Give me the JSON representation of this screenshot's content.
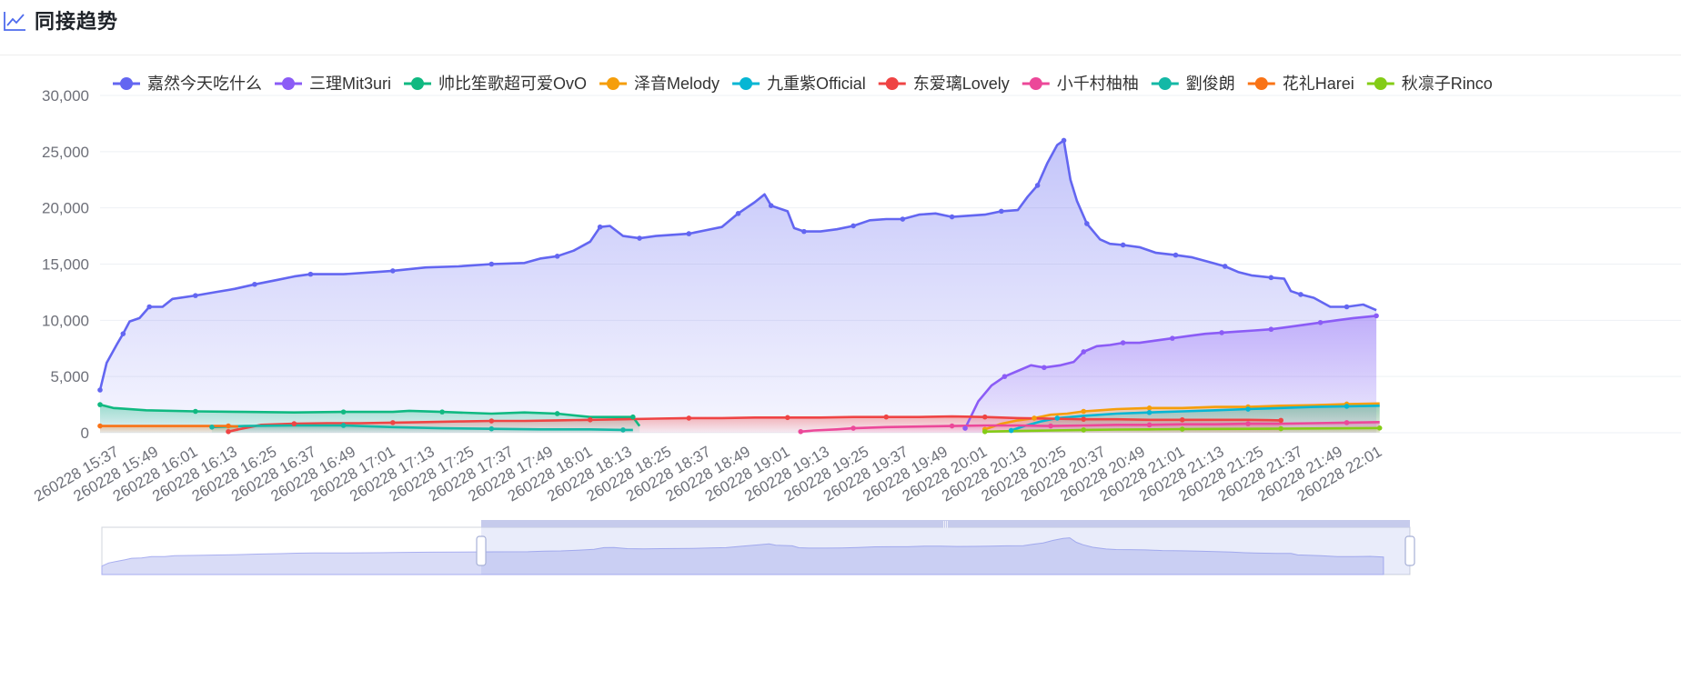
{
  "header": {
    "title": "同接趋势",
    "icon": "line-chart-icon"
  },
  "chart_data": {
    "type": "area",
    "ylim": [
      0,
      30000
    ],
    "yticks": [
      0,
      5000,
      10000,
      15000,
      20000,
      25000,
      30000
    ],
    "ytick_labels": [
      "0",
      "5,000",
      "10,000",
      "15,000",
      "20,000",
      "25,000",
      "30,000"
    ],
    "xrange": [
      "260228 15:31",
      "260228 22:07"
    ],
    "x_tick_labels": [
      "260228 15:37",
      "260228 15:49",
      "260228 16:01",
      "260228 16:13",
      "260228 16:25",
      "260228 16:37",
      "260228 16:49",
      "260228 17:01",
      "260228 17:13",
      "260228 17:25",
      "260228 17:37",
      "260228 17:49",
      "260228 18:01",
      "260228 18:13",
      "260228 18:25",
      "260228 18:37",
      "260228 18:49",
      "260228 19:01",
      "260228 19:13",
      "260228 19:25",
      "260228 19:37",
      "260228 19:49",
      "260228 20:01",
      "260228 20:13",
      "260228 20:25",
      "260228 20:37",
      "260228 20:49",
      "260228 21:01",
      "260228 21:13",
      "260228 21:25",
      "260228 21:37",
      "260228 21:49",
      "260228 22:01"
    ],
    "legend_position": "top",
    "grid": true,
    "series": [
      {
        "name": "嘉然今天吃什么",
        "color": "#6366f1",
        "points": [
          [
            "15:31",
            3800
          ],
          [
            "15:33",
            6200
          ],
          [
            "15:36",
            7800
          ],
          [
            "15:38",
            8800
          ],
          [
            "15:40",
            9900
          ],
          [
            "15:43",
            10200
          ],
          [
            "15:46",
            11200
          ],
          [
            "15:50",
            11200
          ],
          [
            "15:53",
            11900
          ],
          [
            "16:00",
            12200
          ],
          [
            "16:06",
            12500
          ],
          [
            "16:12",
            12800
          ],
          [
            "16:18",
            13200
          ],
          [
            "16:25",
            13600
          ],
          [
            "16:30",
            13900
          ],
          [
            "16:35",
            14100
          ],
          [
            "16:45",
            14100
          ],
          [
            "16:55",
            14300
          ],
          [
            "17:00",
            14400
          ],
          [
            "17:10",
            14700
          ],
          [
            "17:20",
            14800
          ],
          [
            "17:30",
            15000
          ],
          [
            "17:40",
            15100
          ],
          [
            "17:45",
            15500
          ],
          [
            "17:50",
            15700
          ],
          [
            "17:55",
            16200
          ],
          [
            "18:00",
            17000
          ],
          [
            "18:03",
            18300
          ],
          [
            "18:06",
            18400
          ],
          [
            "18:10",
            17500
          ],
          [
            "18:15",
            17300
          ],
          [
            "18:20",
            17500
          ],
          [
            "18:25",
            17600
          ],
          [
            "18:30",
            17700
          ],
          [
            "18:35",
            18000
          ],
          [
            "18:40",
            18300
          ],
          [
            "18:45",
            19500
          ],
          [
            "18:50",
            20500
          ],
          [
            "18:53",
            21200
          ],
          [
            "18:55",
            20200
          ],
          [
            "19:00",
            19700
          ],
          [
            "19:02",
            18200
          ],
          [
            "19:05",
            17900
          ],
          [
            "19:10",
            17900
          ],
          [
            "19:15",
            18100
          ],
          [
            "19:20",
            18400
          ],
          [
            "19:25",
            18900
          ],
          [
            "19:30",
            19000
          ],
          [
            "19:35",
            19000
          ],
          [
            "19:40",
            19400
          ],
          [
            "19:45",
            19500
          ],
          [
            "19:50",
            19200
          ],
          [
            "19:55",
            19300
          ],
          [
            "20:00",
            19400
          ],
          [
            "20:05",
            19700
          ],
          [
            "20:10",
            19800
          ],
          [
            "20:13",
            21000
          ],
          [
            "20:16",
            22000
          ],
          [
            "20:19",
            24000
          ],
          [
            "20:22",
            25600
          ],
          [
            "20:24",
            26000
          ],
          [
            "20:26",
            22500
          ],
          [
            "20:28",
            20600
          ],
          [
            "20:31",
            18600
          ],
          [
            "20:35",
            17200
          ],
          [
            "20:38",
            16800
          ],
          [
            "20:42",
            16700
          ],
          [
            "20:47",
            16500
          ],
          [
            "20:52",
            16000
          ],
          [
            "20:58",
            15800
          ],
          [
            "21:03",
            15600
          ],
          [
            "21:08",
            15200
          ],
          [
            "21:13",
            14800
          ],
          [
            "21:17",
            14300
          ],
          [
            "21:21",
            14000
          ],
          [
            "21:27",
            13800
          ],
          [
            "21:31",
            13700
          ],
          [
            "21:33",
            12600
          ],
          [
            "21:36",
            12300
          ],
          [
            "21:40",
            12000
          ],
          [
            "21:45",
            11200
          ],
          [
            "21:50",
            11200
          ],
          [
            "21:55",
            11400
          ],
          [
            "21:59",
            10900
          ]
        ]
      },
      {
        "name": "三理Mit3uri",
        "color": "#8b5cf6",
        "points": [
          [
            "19:54",
            400
          ],
          [
            "19:58",
            2800
          ],
          [
            "20:02",
            4200
          ],
          [
            "20:06",
            5000
          ],
          [
            "20:10",
            5500
          ],
          [
            "20:14",
            6000
          ],
          [
            "20:18",
            5800
          ],
          [
            "20:23",
            6000
          ],
          [
            "20:27",
            6300
          ],
          [
            "20:30",
            7200
          ],
          [
            "20:34",
            7700
          ],
          [
            "20:38",
            7800
          ],
          [
            "20:42",
            8000
          ],
          [
            "20:47",
            8000
          ],
          [
            "20:52",
            8200
          ],
          [
            "20:57",
            8400
          ],
          [
            "21:02",
            8600
          ],
          [
            "21:07",
            8800
          ],
          [
            "21:12",
            8900
          ],
          [
            "21:17",
            9000
          ],
          [
            "21:22",
            9100
          ],
          [
            "21:27",
            9200
          ],
          [
            "21:32",
            9400
          ],
          [
            "21:37",
            9600
          ],
          [
            "21:42",
            9800
          ],
          [
            "21:47",
            10000
          ],
          [
            "21:52",
            10200
          ],
          [
            "21:59",
            10400
          ]
        ]
      },
      {
        "name": "帅比笙歌超可爱OvO",
        "color": "#10b981",
        "points": [
          [
            "15:31",
            2500
          ],
          [
            "15:35",
            2200
          ],
          [
            "15:45",
            2000
          ],
          [
            "16:00",
            1900
          ],
          [
            "16:15",
            1850
          ],
          [
            "16:30",
            1800
          ],
          [
            "16:45",
            1850
          ],
          [
            "17:00",
            1850
          ],
          [
            "17:05",
            1950
          ],
          [
            "17:15",
            1850
          ],
          [
            "17:30",
            1700
          ],
          [
            "17:40",
            1800
          ],
          [
            "17:50",
            1700
          ],
          [
            "18:00",
            1400
          ],
          [
            "18:10",
            1400
          ],
          [
            "18:13",
            1400
          ],
          [
            "18:15",
            600
          ]
        ]
      },
      {
        "name": "泽音Melody",
        "color": "#f59e0b",
        "points": [
          [
            "20:00",
            300
          ],
          [
            "20:05",
            800
          ],
          [
            "20:10",
            1100
          ],
          [
            "20:15",
            1300
          ],
          [
            "20:20",
            1600
          ],
          [
            "20:25",
            1700
          ],
          [
            "20:30",
            1900
          ],
          [
            "20:35",
            2000
          ],
          [
            "20:40",
            2100
          ],
          [
            "20:50",
            2200
          ],
          [
            "21:00",
            2200
          ],
          [
            "21:10",
            2300
          ],
          [
            "21:20",
            2300
          ],
          [
            "21:30",
            2400
          ],
          [
            "21:40",
            2450
          ],
          [
            "21:50",
            2550
          ],
          [
            "22:00",
            2600
          ]
        ]
      },
      {
        "name": "九重紫Official",
        "color": "#06b6d4",
        "points": [
          [
            "20:08",
            200
          ],
          [
            "20:12",
            600
          ],
          [
            "20:17",
            1000
          ],
          [
            "20:22",
            1300
          ],
          [
            "20:30",
            1500
          ],
          [
            "20:40",
            1700
          ],
          [
            "20:50",
            1800
          ],
          [
            "21:00",
            1900
          ],
          [
            "21:10",
            2000
          ],
          [
            "21:20",
            2100
          ],
          [
            "21:30",
            2200
          ],
          [
            "21:40",
            2300
          ],
          [
            "21:50",
            2350
          ],
          [
            "22:00",
            2400
          ]
        ]
      },
      {
        "name": "东爱璃Lovely",
        "color": "#ef4444",
        "points": [
          [
            "16:10",
            100
          ],
          [
            "16:13",
            300
          ],
          [
            "16:20",
            700
          ],
          [
            "16:30",
            800
          ],
          [
            "16:40",
            850
          ],
          [
            "16:50",
            850
          ],
          [
            "17:00",
            900
          ],
          [
            "17:10",
            950
          ],
          [
            "17:20",
            1000
          ],
          [
            "17:30",
            1050
          ],
          [
            "17:40",
            1050
          ],
          [
            "17:50",
            1100
          ],
          [
            "18:00",
            1150
          ],
          [
            "18:10",
            1200
          ],
          [
            "18:20",
            1250
          ],
          [
            "18:30",
            1300
          ],
          [
            "18:40",
            1300
          ],
          [
            "18:50",
            1350
          ],
          [
            "19:00",
            1350
          ],
          [
            "19:10",
            1350
          ],
          [
            "19:20",
            1400
          ],
          [
            "19:30",
            1400
          ],
          [
            "19:40",
            1400
          ],
          [
            "19:50",
            1450
          ],
          [
            "20:00",
            1400
          ],
          [
            "20:10",
            1300
          ],
          [
            "20:20",
            1250
          ],
          [
            "20:30",
            1200
          ],
          [
            "20:40",
            1200
          ],
          [
            "20:50",
            1150
          ],
          [
            "21:00",
            1150
          ],
          [
            "21:10",
            1150
          ],
          [
            "21:20",
            1150
          ],
          [
            "21:30",
            1100
          ]
        ]
      },
      {
        "name": "小千村柚柚",
        "color": "#ec4899",
        "points": [
          [
            "19:04",
            100
          ],
          [
            "19:08",
            200
          ],
          [
            "19:15",
            300
          ],
          [
            "19:20",
            400
          ],
          [
            "19:30",
            500
          ],
          [
            "19:40",
            550
          ],
          [
            "19:50",
            600
          ],
          [
            "20:00",
            650
          ],
          [
            "20:10",
            650
          ],
          [
            "20:20",
            600
          ],
          [
            "20:30",
            650
          ],
          [
            "20:40",
            700
          ],
          [
            "20:50",
            700
          ],
          [
            "21:00",
            750
          ],
          [
            "21:10",
            750
          ],
          [
            "21:20",
            800
          ],
          [
            "21:30",
            800
          ],
          [
            "21:40",
            850
          ],
          [
            "21:50",
            900
          ],
          [
            "22:00",
            950
          ]
        ]
      },
      {
        "name": "劉俊朗",
        "color": "#14b8a6",
        "points": [
          [
            "16:05",
            500
          ],
          [
            "16:15",
            600
          ],
          [
            "16:30",
            650
          ],
          [
            "16:45",
            650
          ],
          [
            "17:00",
            500
          ],
          [
            "17:15",
            400
          ],
          [
            "17:30",
            350
          ],
          [
            "17:45",
            300
          ],
          [
            "18:00",
            300
          ],
          [
            "18:10",
            250
          ],
          [
            "18:13",
            250
          ]
        ]
      },
      {
        "name": "花礼Harei",
        "color": "#f97316",
        "points": [
          [
            "15:31",
            600
          ],
          [
            "15:40",
            600
          ],
          [
            "16:00",
            600
          ],
          [
            "16:10",
            600
          ],
          [
            "16:13",
            550
          ]
        ]
      },
      {
        "name": "秋凛子Rinco",
        "color": "#84cc16",
        "points": [
          [
            "20:00",
            100
          ],
          [
            "20:10",
            150
          ],
          [
            "20:20",
            200
          ],
          [
            "20:30",
            250
          ],
          [
            "20:40",
            280
          ],
          [
            "20:50",
            300
          ],
          [
            "21:00",
            320
          ],
          [
            "21:10",
            340
          ],
          [
            "21:20",
            350
          ],
          [
            "21:30",
            360
          ],
          [
            "21:40",
            380
          ],
          [
            "21:50",
            400
          ],
          [
            "22:00",
            420
          ]
        ]
      }
    ],
    "zoom_slider": {
      "start_fraction": 0.29,
      "end_fraction": 1.0
    }
  }
}
